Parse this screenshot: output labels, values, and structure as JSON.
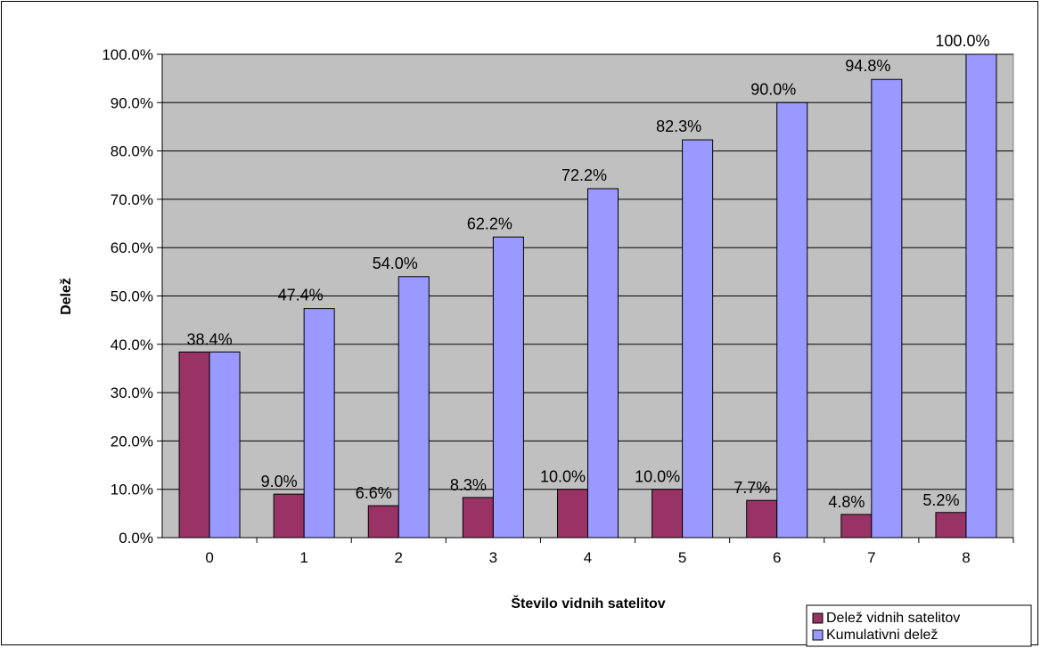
{
  "chart_data": {
    "type": "bar",
    "title": "",
    "xlabel": "Število vidnih satelitov",
    "ylabel": "Delež",
    "categories": [
      "0",
      "1",
      "2",
      "3",
      "4",
      "5",
      "6",
      "7",
      "8"
    ],
    "series": [
      {
        "name": "Delež vidnih satelitov",
        "color": "#993366",
        "values": [
          38.4,
          9.0,
          6.6,
          8.3,
          10.0,
          10.0,
          7.7,
          4.8,
          5.2
        ],
        "labels": [
          "38.4%",
          "9.0%",
          "6.6%",
          "8.3%",
          "10.0%",
          "10.0%",
          "7.7%",
          "4.8%",
          "5.2%"
        ]
      },
      {
        "name": "Kumulativni delež",
        "color": "#9999ff",
        "values": [
          38.4,
          47.4,
          54.0,
          62.2,
          72.2,
          82.3,
          90.0,
          94.8,
          100.0
        ],
        "labels": [
          "38.4%",
          "47.4%",
          "54.0%",
          "62.2%",
          "72.2%",
          "82.3%",
          "90.0%",
          "94.8%",
          "100.0%"
        ]
      }
    ],
    "y_ticks": [
      "0.0%",
      "10.0%",
      "20.0%",
      "30.0%",
      "40.0%",
      "50.0%",
      "60.0%",
      "70.0%",
      "80.0%",
      "90.0%",
      "100.0%"
    ],
    "ylim": [
      0,
      100
    ],
    "plot_background": "#c0c0c0",
    "grid": true,
    "legend_position": "bottom-right"
  }
}
